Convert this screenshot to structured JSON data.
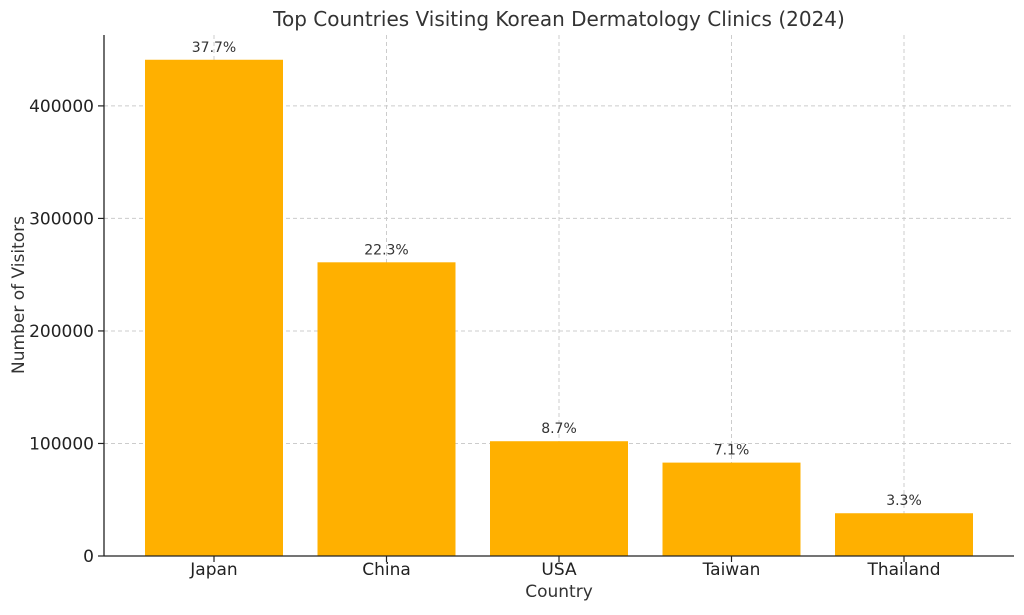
{
  "chart_data": {
    "type": "bar",
    "title": "Top Countries Visiting Korean Dermatology Clinics (2024)",
    "xlabel": "Country",
    "ylabel": "Number of Visitors",
    "categories": [
      "Japan",
      "China",
      "USA",
      "Taiwan",
      "Thailand"
    ],
    "values": [
      441000,
      261000,
      102000,
      83000,
      38000
    ],
    "data_labels": [
      "37.7%",
      "22.3%",
      "8.7%",
      "7.1%",
      "3.3%"
    ],
    "ylim": [
      0,
      463000
    ],
    "yticks": [
      0,
      100000,
      200000,
      300000,
      400000
    ],
    "ytick_labels": [
      "0",
      "100000",
      "200000",
      "300000",
      "400000"
    ],
    "grid": true,
    "bar_color": "#FFB000"
  }
}
